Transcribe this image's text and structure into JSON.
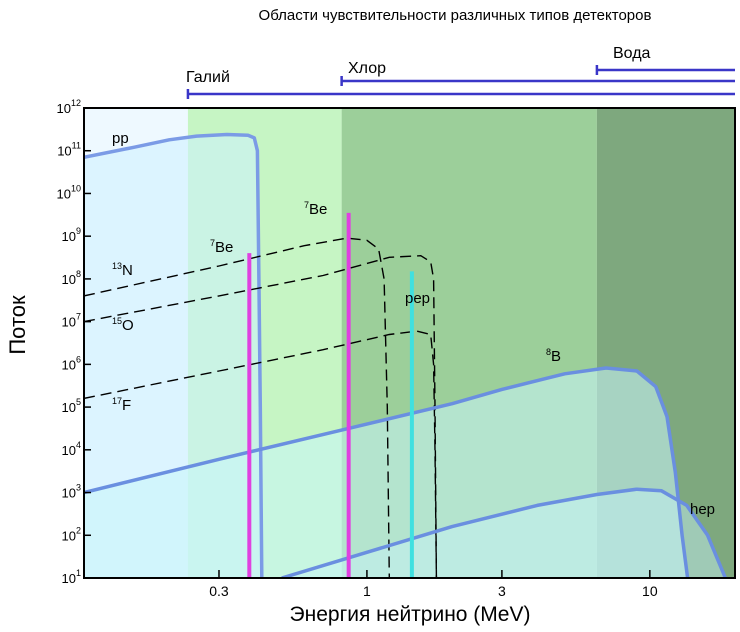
{
  "chart_data": {
    "type": "line",
    "title": "Области чувствительности различных типов детекторов",
    "xlabel": "Энергия нейтрино (MeV)",
    "ylabel": "Поток",
    "x_scale": "log",
    "y_scale": "log",
    "xlim": [
      0.1,
      20
    ],
    "ylim": [
      10,
      1000000000000.0
    ],
    "x_ticks": [
      {
        "value": 0.3,
        "label": "0.3"
      },
      {
        "value": 1,
        "label": "1"
      },
      {
        "value": 3,
        "label": "3"
      },
      {
        "value": 10,
        "label": "10"
      }
    ],
    "y_ticks": [
      {
        "value": 10,
        "base": "10",
        "exp": "1"
      },
      {
        "value": 100,
        "base": "10",
        "exp": "2"
      },
      {
        "value": 1000,
        "base": "10",
        "exp": "3"
      },
      {
        "value": 10000,
        "base": "10",
        "exp": "4"
      },
      {
        "value": 100000,
        "base": "10",
        "exp": "5"
      },
      {
        "value": 1000000,
        "base": "10",
        "exp": "6"
      },
      {
        "value": 10000000,
        "base": "10",
        "exp": "7"
      },
      {
        "value": 100000000,
        "base": "10",
        "exp": "8"
      },
      {
        "value": 1000000000,
        "base": "10",
        "exp": "9"
      },
      {
        "value": 10000000000,
        "base": "10",
        "exp": "10"
      },
      {
        "value": 100000000000,
        "base": "10",
        "exp": "11"
      },
      {
        "value": 1000000000000,
        "base": "10",
        "exp": "12"
      }
    ],
    "detector_regions": [
      {
        "name": "Галий",
        "threshold_MeV": 0.233,
        "color": "#c6f5c4"
      },
      {
        "name": "Хлор",
        "threshold_MeV": 0.814,
        "color": "#9ccf9a"
      },
      {
        "name": "Вода",
        "threshold_MeV": 6.5,
        "color": "#7ea87e"
      }
    ],
    "series": [
      {
        "name": "pp",
        "label": "pp",
        "style": "solid",
        "color": "#7b9be6",
        "points": [
          [
            0.1,
            70000000000.0
          ],
          [
            0.15,
            120000000000.0
          ],
          [
            0.2,
            180000000000.0
          ],
          [
            0.25,
            220000000000.0
          ],
          [
            0.32,
            240000000000.0
          ],
          [
            0.38,
            230000000000.0
          ],
          [
            0.4,
            200000000000.0
          ],
          [
            0.41,
            100000000000.0
          ],
          [
            0.415,
            100000000.0
          ],
          [
            0.42,
            100000.0
          ],
          [
            0.425,
            10
          ]
        ]
      },
      {
        "name": "13N",
        "label": "N",
        "label_sup": "13",
        "style": "dashed",
        "color": "#000000",
        "points": [
          [
            0.1,
            40000000.0
          ],
          [
            0.3,
            200000000.0
          ],
          [
            0.6,
            600000000.0
          ],
          [
            0.85,
            900000000.0
          ],
          [
            1.0,
            800000000.0
          ],
          [
            1.1,
            500000000.0
          ],
          [
            1.15,
            100000000.0
          ],
          [
            1.18,
            100000.0
          ],
          [
            1.2,
            10
          ]
        ]
      },
      {
        "name": "15O",
        "label": "O",
        "label_sup": "15",
        "style": "dashed",
        "color": "#000000",
        "points": [
          [
            0.1,
            10000000.0
          ],
          [
            0.3,
            40000000.0
          ],
          [
            0.7,
            120000000.0
          ],
          [
            1.2,
            320000000.0
          ],
          [
            1.55,
            350000000.0
          ],
          [
            1.68,
            250000000.0
          ],
          [
            1.72,
            100000000.0
          ],
          [
            1.74,
            100000.0
          ],
          [
            1.76,
            10
          ]
        ]
      },
      {
        "name": "17F",
        "label": "F",
        "label_sup": "17",
        "style": "dashed",
        "color": "#000000",
        "points": [
          [
            0.1,
            160000.0
          ],
          [
            0.3,
            700000.0
          ],
          [
            0.7,
            2200000.0
          ],
          [
            1.2,
            5000000.0
          ],
          [
            1.5,
            6000000.0
          ],
          [
            1.68,
            5000000.0
          ],
          [
            1.72,
            1000000.0
          ],
          [
            1.74,
            10000.0
          ],
          [
            1.76,
            10
          ]
        ]
      },
      {
        "name": "8B",
        "label": "B",
        "label_sup": "8",
        "style": "solid",
        "color": "#6a8fe0",
        "points": [
          [
            0.1,
            1000
          ],
          [
            0.3,
            6000
          ],
          [
            1.0,
            40000
          ],
          [
            2.0,
            120000
          ],
          [
            3.0,
            260000
          ],
          [
            5.0,
            600000
          ],
          [
            7.0,
            820000
          ],
          [
            9.0,
            700000
          ],
          [
            10.5,
            300000
          ],
          [
            11.5,
            60000
          ],
          [
            12.3,
            3000
          ],
          [
            13,
            100
          ],
          [
            13.6,
            10
          ]
        ]
      },
      {
        "name": "hep",
        "label": "hep",
        "style": "solid",
        "color": "#6a8fe0",
        "points": [
          [
            0.5,
            10
          ],
          [
            1.0,
            40
          ],
          [
            2.0,
            160
          ],
          [
            4.0,
            500
          ],
          [
            6.5,
            900
          ],
          [
            9.0,
            1200
          ],
          [
            11.0,
            1100
          ],
          [
            13.5,
            500
          ],
          [
            16.0,
            100
          ],
          [
            18.5,
            10
          ]
        ]
      }
    ],
    "lines": [
      {
        "name": "7Be-0.38",
        "label": "Be",
        "label_sup": "7",
        "energy_MeV": 0.384,
        "flux": 400000000.0,
        "color": "#e040e0"
      },
      {
        "name": "7Be-0.86",
        "label": "Be",
        "label_sup": "7",
        "energy_MeV": 0.862,
        "flux": 3500000000.0,
        "color": "#e040e0"
      },
      {
        "name": "pep",
        "label": "pep",
        "energy_MeV": 1.442,
        "flux": 150000000.0,
        "color": "#40e0e0"
      }
    ]
  }
}
